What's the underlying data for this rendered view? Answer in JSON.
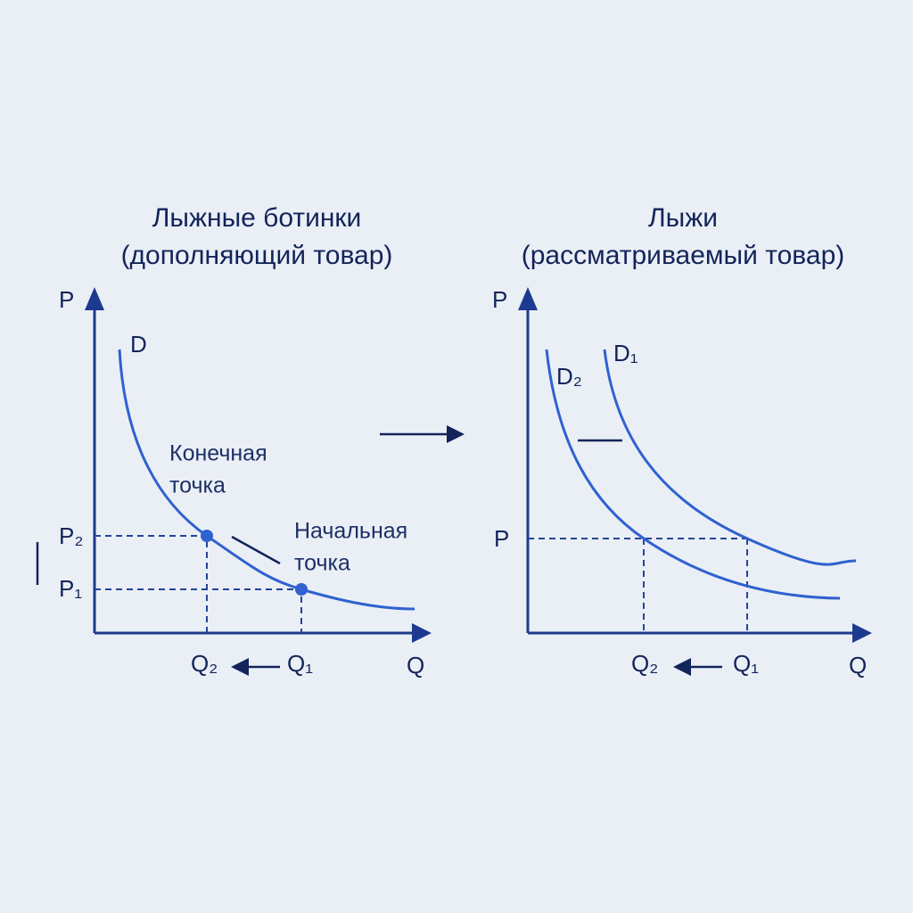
{
  "left": {
    "title": [
      "Лыжные ботинки",
      "(дополняющий товар)"
    ],
    "y_axis": "P",
    "x_axis": "Q",
    "curve": "D",
    "p_labels": [
      "P₂",
      "P₁"
    ],
    "q_labels": [
      "Q₂",
      "Q₁"
    ],
    "end_point": [
      "Конечная",
      "точка"
    ],
    "start_point": [
      "Начальная",
      "точка"
    ]
  },
  "right": {
    "title": [
      "Лыжи",
      "(рассматриваемый товар)"
    ],
    "y_axis": "P",
    "x_axis": "Q",
    "curves": [
      "D₁",
      "D₂"
    ],
    "p_label": "P",
    "q_labels": [
      "Q₂",
      "Q₁"
    ]
  }
}
